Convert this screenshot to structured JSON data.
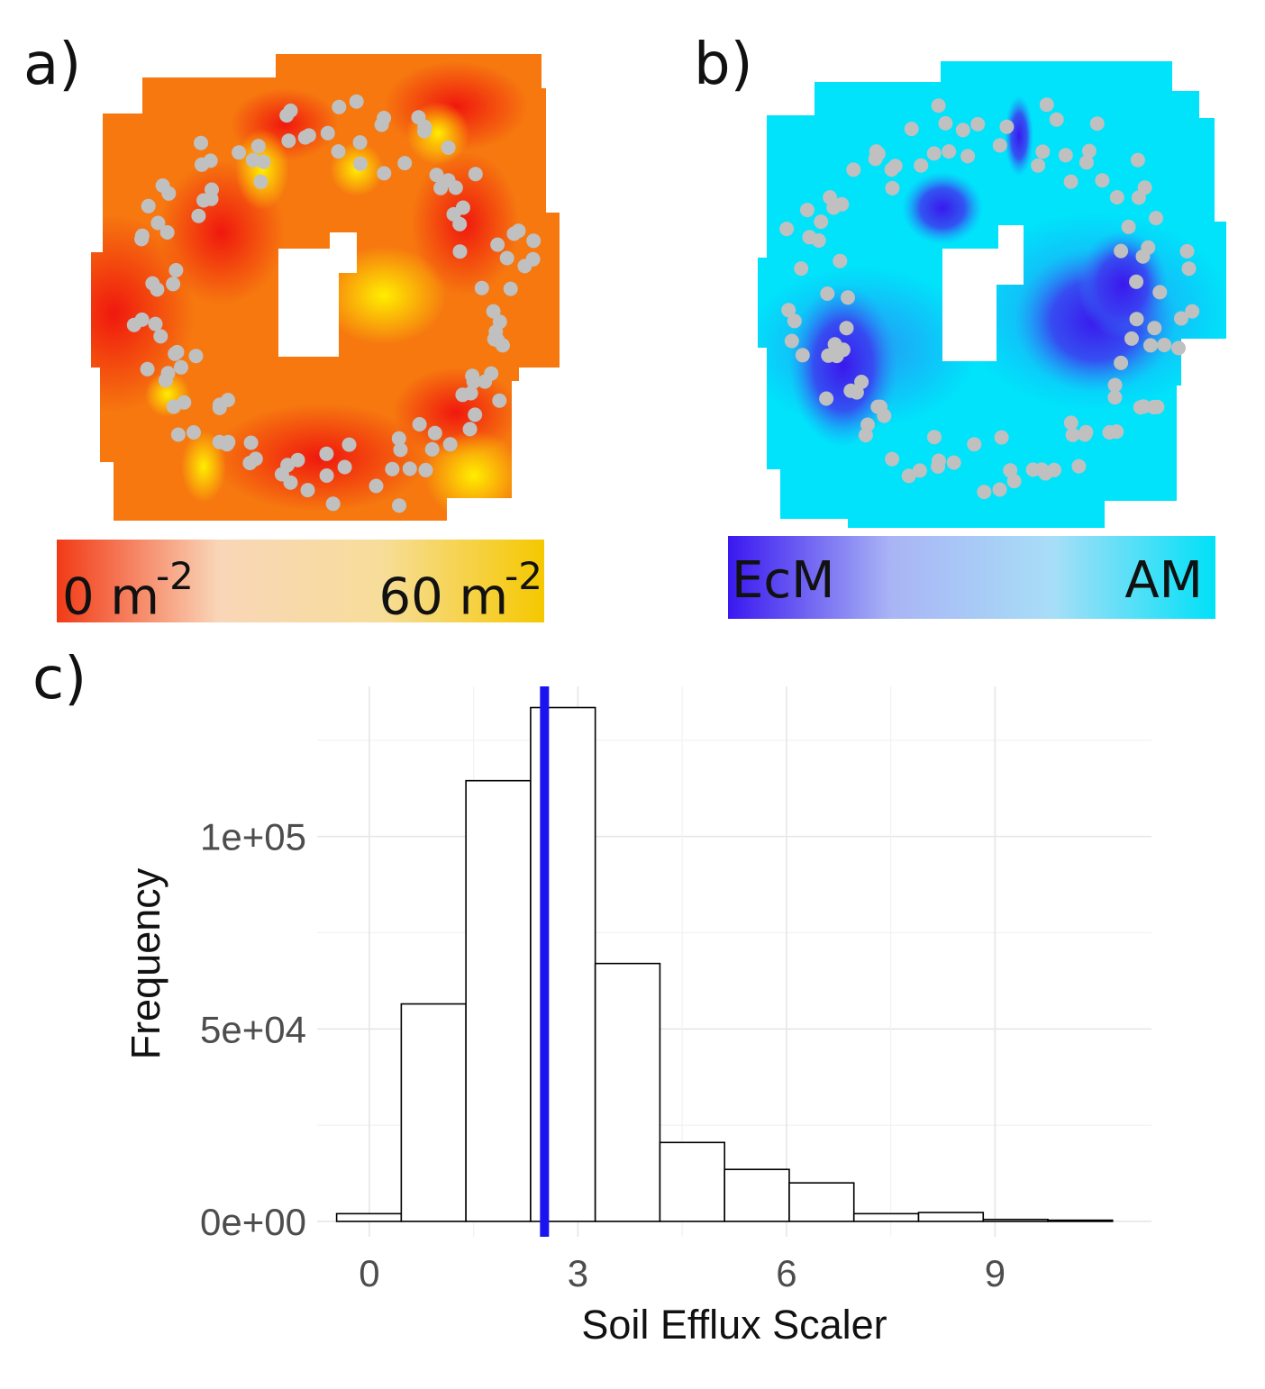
{
  "panels": {
    "a": {
      "label": "a)",
      "legend": {
        "min_label": "0 m",
        "min_sup": "-2",
        "max_label": "60 m",
        "max_sup": "-2",
        "colors": [
          "#f23a16",
          "#f9d6b8",
          "#f7dd9a",
          "#f5c800"
        ]
      },
      "map_colors": {
        "low": "#f22a10",
        "mid": "#f6760f",
        "high": "#ffea00",
        "point": "#c0c0c0"
      }
    },
    "b": {
      "label": "b)",
      "legend": {
        "min_label": "EcM",
        "max_label": "AM",
        "colors": [
          "#3a18f0",
          "#a9b4f5",
          "#a8def7",
          "#00e1f7"
        ]
      },
      "map_colors": {
        "am": "#00e3fb",
        "ecm": "#3a22ee",
        "mid": "#2a8cf4",
        "point": "#c0c0c0"
      }
    },
    "c": {
      "label": "c)"
    }
  },
  "chart_data": {
    "type": "bar",
    "subtype": "histogram",
    "xlabel": "Soil Efflux Scaler",
    "ylabel": "Frequency",
    "xlim": [
      -0.75,
      11.25
    ],
    "ylim": [
      -4000,
      139000
    ],
    "x_ticks": [
      0,
      3,
      6,
      9
    ],
    "x_tick_labels": [
      "0",
      "3",
      "6",
      "9"
    ],
    "y_ticks": [
      0,
      50000,
      100000
    ],
    "y_tick_labels": [
      "0e+00",
      "5e+04",
      "1e+05"
    ],
    "grid": true,
    "bin_width": 0.93,
    "bins": [
      {
        "x0": -0.47,
        "x1": 0.46,
        "count": 2000
      },
      {
        "x0": 0.46,
        "x1": 1.39,
        "count": 56500
      },
      {
        "x0": 1.39,
        "x1": 2.32,
        "count": 114500
      },
      {
        "x0": 2.32,
        "x1": 3.25,
        "count": 133500
      },
      {
        "x0": 3.25,
        "x1": 4.18,
        "count": 67000
      },
      {
        "x0": 4.18,
        "x1": 5.11,
        "count": 20500
      },
      {
        "x0": 5.11,
        "x1": 6.04,
        "count": 13500
      },
      {
        "x0": 6.04,
        "x1": 6.97,
        "count": 10000
      },
      {
        "x0": 6.97,
        "x1": 7.9,
        "count": 2000
      },
      {
        "x0": 7.9,
        "x1": 8.83,
        "count": 2300
      },
      {
        "x0": 8.83,
        "x1": 9.76,
        "count": 500
      },
      {
        "x0": 9.76,
        "x1": 10.69,
        "count": 300
      }
    ],
    "vline": {
      "x": 2.52,
      "color": "#1a14f0"
    },
    "bar_fill": "#ffffff",
    "bar_stroke": "#000000"
  }
}
